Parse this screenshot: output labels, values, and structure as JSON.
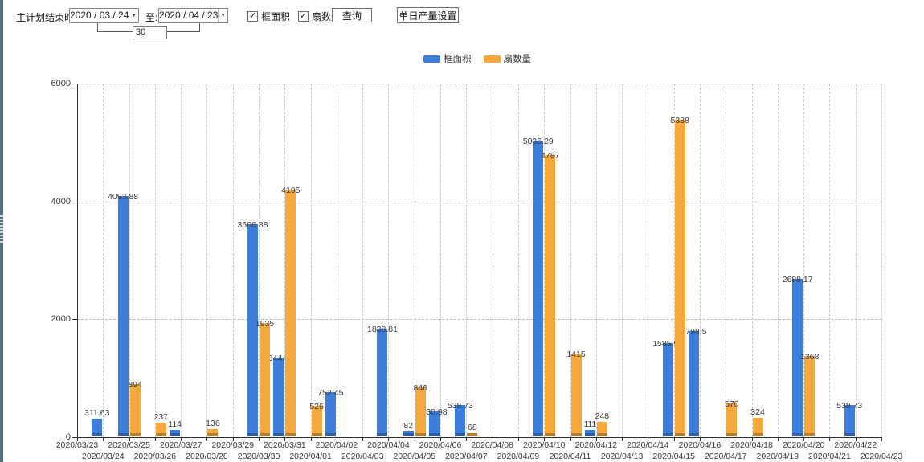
{
  "icons": {
    "dropdown": "▼"
  },
  "toolbar": {
    "range_label": "主计划结束时间:",
    "start_date": "2020 / 03 / 24",
    "to_label": "至:",
    "end_date": "2020 / 04 / 23",
    "days_between": "30",
    "checkboxes": [
      {
        "label": "框面积",
        "mark": "✓",
        "checked": true
      },
      {
        "label": "扇数量",
        "mark": "✓",
        "checked": true
      }
    ],
    "query_button": "查询",
    "daily_output_button": "单日产量设置"
  },
  "legend": [
    {
      "label": "框面积",
      "color": "#3d7edd"
    },
    {
      "label": "扇数量",
      "color": "#f5a93c"
    }
  ],
  "chart_data": {
    "type": "bar",
    "title": "",
    "xlabel": "",
    "ylabel": "",
    "ylim": [
      0,
      6000
    ],
    "yticks": [
      "0",
      "2000",
      "4000",
      "6000"
    ],
    "grid": "dashed",
    "legend_position": "top",
    "categories": [
      "2020/03/23",
      "2020/03/24",
      "2020/03/25",
      "2020/03/26",
      "2020/03/27",
      "2020/03/28",
      "2020/03/29",
      "2020/03/30",
      "2020/03/31",
      "2020/04/01",
      "2020/04/02",
      "2020/04/03",
      "2020/04/04",
      "2020/04/05",
      "2020/04/06",
      "2020/04/07",
      "2020/04/08",
      "2020/04/09",
      "2020/04/10",
      "2020/04/11",
      "2020/04/12",
      "2020/04/13",
      "2020/04/14",
      "2020/04/15",
      "2020/04/16",
      "2020/04/17",
      "2020/04/18",
      "2020/04/19",
      "2020/04/20",
      "2020/04/21",
      "2020/04/22",
      "2020/04/23"
    ],
    "series": [
      {
        "name": "框面积",
        "color": "#3d7edd",
        "values": [
          null,
          "311.63",
          "4093.88",
          null,
          "114",
          null,
          null,
          "3606.88",
          "1344.95",
          null,
          "752.45",
          null,
          "1838.81",
          "82",
          "430.98",
          "538.73",
          null,
          null,
          "5036.29",
          null,
          "111",
          null,
          null,
          "1585.96",
          "1798.5",
          null,
          null,
          null,
          "2688.17",
          null,
          "538.73",
          null
        ]
      },
      {
        "name": "扇数量",
        "color": "#f5a93c",
        "values": [
          null,
          null,
          "894",
          "237",
          null,
          "136",
          null,
          "1935",
          "4195",
          "526",
          null,
          null,
          null,
          "846",
          null,
          "68",
          null,
          null,
          "4787",
          "1415",
          "248",
          null,
          null,
          "5388",
          null,
          "570",
          "324",
          null,
          "1368",
          null,
          null,
          null
        ]
      }
    ]
  }
}
